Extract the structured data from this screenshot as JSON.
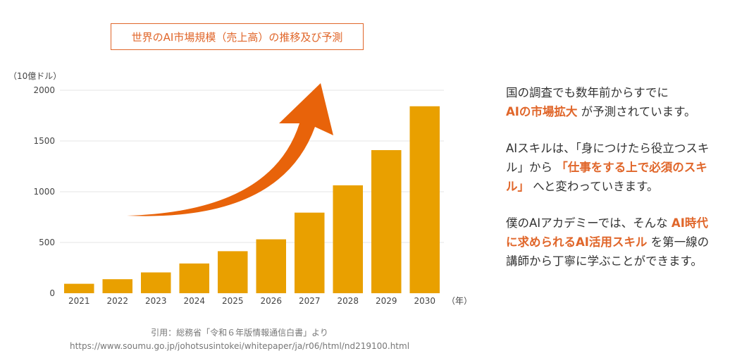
{
  "chart_data": {
    "type": "bar",
    "title": "世界のAI市場規模（売上高）の推移及び予測",
    "ylabel": "（10億ドル）",
    "xlabel": "（年）",
    "categories": [
      "2021",
      "2022",
      "2023",
      "2024",
      "2025",
      "2026",
      "2027",
      "2028",
      "2029",
      "2030"
    ],
    "values": [
      93,
      138,
      205,
      293,
      414,
      531,
      794,
      1063,
      1410,
      1842
    ],
    "ylim": [
      0,
      2000
    ],
    "yticks": [
      0,
      500,
      1000,
      1500,
      2000
    ],
    "bar_color": "#e9a000",
    "arrow_color": "#e8630a",
    "grid": true
  },
  "source": {
    "line1": "引用：総務省「令和６年版情報通信白書」より",
    "line2": "https://www.soumu.go.jp/johotsusintokei/whitepaper/ja/r06/html/nd219100.html"
  },
  "side": {
    "p1_a": "国の調査でも数年前からすでに",
    "p1_hl": "AIの市場拡大",
    "p1_b": " が予測されています。",
    "p2_a": "AIスキルは、「身につけたら役立つスキル」から ",
    "p2_hl": "「仕事をする上で必須のスキル」",
    "p2_b": " へと変わっていきます。",
    "p3_a": "僕のAIアカデミーでは、そんな ",
    "p3_hl": "AI時代に求められるAI活用スキル",
    "p3_b": " を第一線の講師から丁寧に学ぶことができます。"
  },
  "colors": {
    "accent": "#e0662a"
  }
}
